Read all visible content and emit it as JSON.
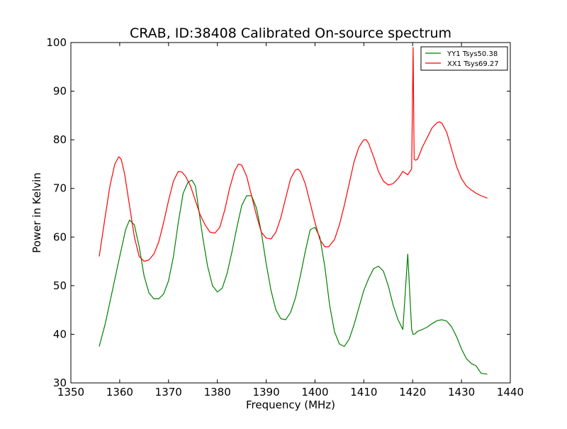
{
  "chart_data": {
    "type": "line",
    "title": "CRAB, ID:38408 Calibrated On-source spectrum",
    "xlabel": "Frequency (MHz)",
    "ylabel": "Power in Kelvin",
    "xlim": [
      1350,
      1440
    ],
    "ylim": [
      30,
      100
    ],
    "xticks": [
      1350,
      1360,
      1370,
      1380,
      1390,
      1400,
      1410,
      1420,
      1430,
      1440
    ],
    "yticks": [
      30,
      40,
      50,
      60,
      70,
      80,
      90,
      100
    ],
    "grid": false,
    "legend_position": "top-right",
    "series": [
      {
        "name": "YY1 Tsys50.38",
        "color": "#008000",
        "x": [
          1355.8,
          1357,
          1358.5,
          1360,
          1361.2,
          1362,
          1363,
          1364,
          1365,
          1366,
          1367,
          1368,
          1369,
          1370,
          1371,
          1372,
          1373,
          1374,
          1374.8,
          1375.5,
          1376,
          1377,
          1378,
          1379,
          1380,
          1381,
          1382,
          1383,
          1384,
          1385,
          1386,
          1387,
          1388,
          1389,
          1390,
          1391,
          1392,
          1393,
          1394,
          1395,
          1396,
          1397,
          1398,
          1399,
          1400,
          1401,
          1402,
          1403,
          1404,
          1405,
          1406,
          1407,
          1408,
          1409,
          1410,
          1411,
          1412,
          1413,
          1414,
          1415,
          1416,
          1417,
          1418,
          1419,
          1419.8,
          1420.1,
          1420.3,
          1420.6,
          1421,
          1422,
          1423,
          1424,
          1425,
          1426,
          1427,
          1428,
          1429,
          1430,
          1431,
          1432,
          1433,
          1434,
          1435.3
        ],
        "y": [
          37.5,
          42,
          49,
          56,
          61.5,
          63.5,
          62.5,
          58,
          52,
          48.5,
          47.3,
          47.3,
          48.3,
          51,
          56,
          63,
          69,
          71.3,
          71.7,
          70.5,
          67,
          60,
          54,
          50,
          48.7,
          49.5,
          52.5,
          57,
          62,
          66.5,
          68.5,
          68.5,
          66,
          61,
          54.5,
          49,
          45,
          43.2,
          43,
          44.5,
          47.5,
          52,
          57,
          61.5,
          62,
          60,
          54,
          46,
          40.5,
          38,
          37.5,
          39,
          42,
          45.5,
          49,
          51.5,
          53.5,
          54,
          53,
          50,
          46,
          43,
          41,
          56.5,
          41,
          40,
          40,
          40.2,
          40.6,
          41,
          41.5,
          42.2,
          42.8,
          43,
          42.7,
          41.5,
          39.5,
          37,
          35,
          34,
          33.5,
          32,
          31.8
        ]
      },
      {
        "name": "XX1 Tsys69.27",
        "color": "#ff0000",
        "x": [
          1355.8,
          1357,
          1358,
          1359,
          1359.8,
          1360.3,
          1361,
          1362,
          1363,
          1364,
          1365,
          1366,
          1367,
          1368,
          1369,
          1370,
          1371,
          1372,
          1372.7,
          1373.5,
          1374.5,
          1375.5,
          1376.5,
          1377.5,
          1378.5,
          1379.5,
          1380.5,
          1381.5,
          1382.5,
          1383.5,
          1384.3,
          1385,
          1386,
          1387,
          1388,
          1389,
          1390,
          1391,
          1392,
          1393,
          1394,
          1395,
          1396,
          1396.5,
          1397,
          1398,
          1399,
          1400,
          1401,
          1402,
          1402.8,
          1404,
          1405,
          1406,
          1407,
          1408,
          1409,
          1410,
          1410.5,
          1411,
          1412,
          1413,
          1414,
          1415,
          1416,
          1417,
          1418,
          1419,
          1419.8,
          1420.1,
          1420.3,
          1420.6,
          1421,
          1422,
          1423,
          1424,
          1425,
          1425.5,
          1426,
          1427,
          1428,
          1429,
          1430,
          1431,
          1432,
          1433,
          1434,
          1435.3
        ],
        "y": [
          56,
          64,
          70.5,
          75,
          76.5,
          76,
          73,
          66.5,
          60,
          56,
          55,
          55.3,
          56.5,
          59,
          63,
          67.5,
          71.5,
          73.5,
          73.4,
          72.5,
          70.5,
          67.5,
          64.5,
          62.5,
          61,
          60.8,
          62,
          65.5,
          70,
          73.5,
          75,
          74.8,
          72.5,
          68.5,
          64.5,
          61,
          59.8,
          59.6,
          61,
          64,
          68,
          72,
          73.8,
          74,
          73.5,
          71,
          67,
          63,
          59.5,
          58,
          58,
          59.5,
          62.5,
          66.5,
          71,
          75.5,
          78.5,
          80,
          80,
          79.2,
          76.5,
          73.5,
          71.5,
          70.7,
          71,
          72,
          73.5,
          72.8,
          74,
          99,
          76,
          75.8,
          76,
          78.5,
          80.5,
          82.5,
          83.5,
          83.7,
          83.4,
          81.5,
          78,
          74.5,
          72,
          70.5,
          69.7,
          69,
          68.5,
          68
        ]
      }
    ]
  }
}
